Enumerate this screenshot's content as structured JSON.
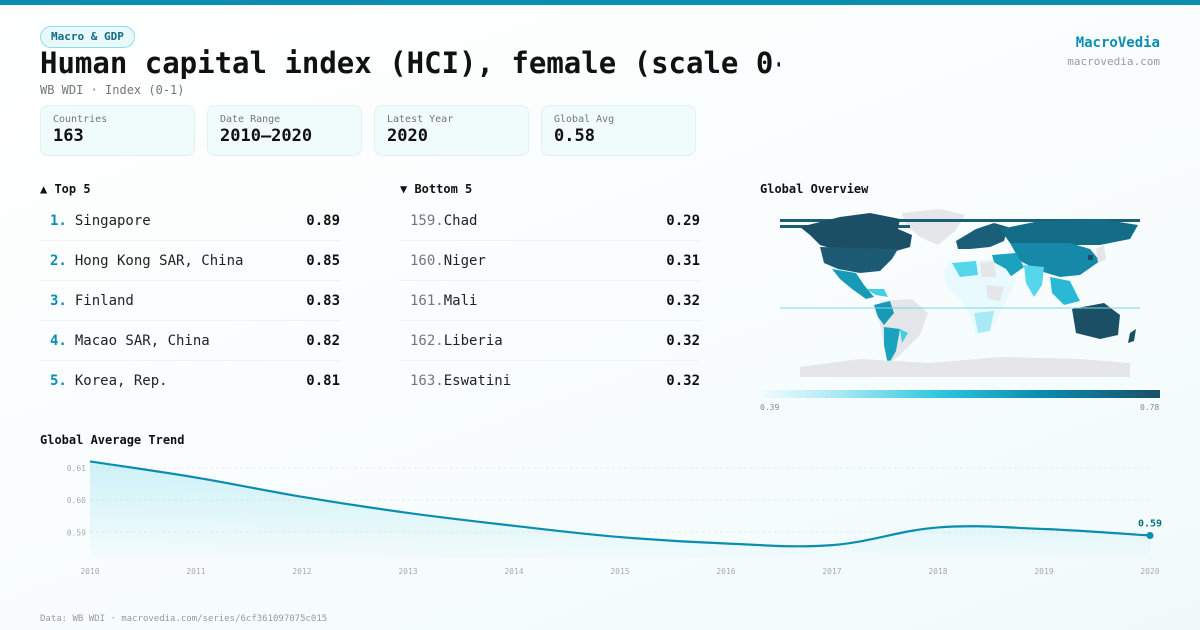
{
  "header": {
    "category_pill": "Macro & GDP",
    "title": "Human capital index (HCI), female (scale 0-",
    "subtitle": "WB WDI · Index (0-1)",
    "brand_name": "MacroVedia",
    "brand_url": "macrovedia.com",
    "accent_color": "#0b8db0"
  },
  "stats": [
    {
      "label": "Countries",
      "value": "163"
    },
    {
      "label": "Date Range",
      "value": "2010–2020"
    },
    {
      "label": "Latest Year",
      "value": "2020"
    },
    {
      "label": "Global Avg",
      "value": "0.58"
    }
  ],
  "top5": {
    "title": "▲ Top 5",
    "items": [
      {
        "rank": "1.",
        "name": "Singapore",
        "value": "0.89"
      },
      {
        "rank": "2.",
        "name": "Hong Kong SAR, China",
        "value": "0.85"
      },
      {
        "rank": "3.",
        "name": "Finland",
        "value": "0.83"
      },
      {
        "rank": "4.",
        "name": "Macao SAR, China",
        "value": "0.82"
      },
      {
        "rank": "5.",
        "name": "Korea, Rep.",
        "value": "0.81"
      }
    ]
  },
  "bottom5": {
    "title": "▼ Bottom 5",
    "items": [
      {
        "rank": "159.",
        "name": "Chad",
        "value": "0.29"
      },
      {
        "rank": "160.",
        "name": "Niger",
        "value": "0.31"
      },
      {
        "rank": "161.",
        "name": "Mali",
        "value": "0.32"
      },
      {
        "rank": "162.",
        "name": "Liberia",
        "value": "0.32"
      },
      {
        "rank": "163.",
        "name": "Eswatini",
        "value": "0.32"
      }
    ]
  },
  "map": {
    "title": "Global Overview",
    "scale_min": "0.39",
    "scale_max": "0.78",
    "scale_colors": [
      "#f2fcfe",
      "#a8e9f4",
      "#2fc6de",
      "#0b8db0",
      "#1b4f66"
    ],
    "no_data_color": "#e4e6ea"
  },
  "trend": {
    "title": "Global Average Trend",
    "last_label": "0.59"
  },
  "footer": {
    "source": "Data: WB WDI · macrovedia.com/series/6cf361097075c015"
  },
  "chart_data": {
    "type": "line",
    "title": "Global Average Trend",
    "xlabel": "",
    "ylabel": "",
    "x": [
      "2010",
      "2011",
      "2012",
      "2013",
      "2014",
      "2015",
      "2016",
      "2017",
      "2018",
      "2019",
      "2020"
    ],
    "series": [
      {
        "name": "Global Average",
        "values": [
          0.612,
          0.607,
          0.601,
          0.596,
          0.592,
          0.5885,
          0.5865,
          0.586,
          0.5915,
          0.591,
          0.589
        ]
      }
    ],
    "yticks": [
      "0.59",
      "0.60",
      "0.61"
    ],
    "ylim": [
      0.582,
      0.614
    ],
    "grid": true,
    "area_fill": true,
    "end_label": "0.59",
    "legend": "none"
  }
}
